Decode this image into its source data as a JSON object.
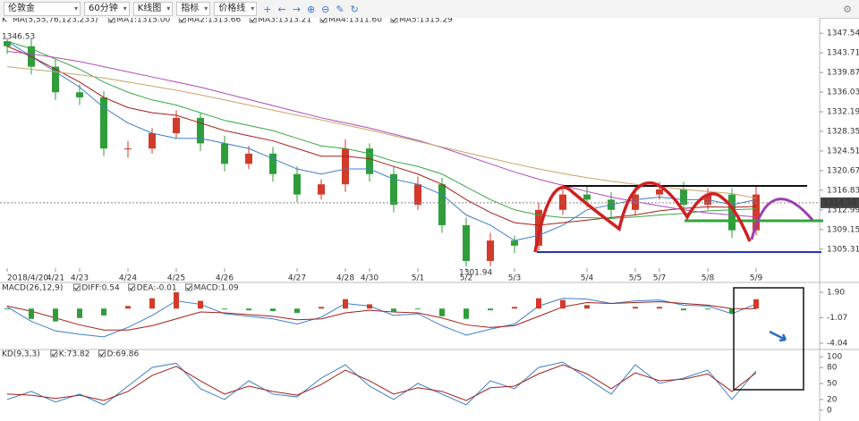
{
  "toolbar": {
    "instrument": "伦敦金",
    "period": "60分钟",
    "chart_kind": "K线图",
    "indicator": "指标",
    "price_line": "价格线"
  },
  "chart_data": [
    {
      "type": "candlestick",
      "label": "K",
      "title": "MA(5,55,76,123,233)",
      "categories": [
        "2018/4/20",
        null,
        "4/21",
        "4/23",
        null,
        "4/24",
        null,
        "4/25",
        null,
        "4/26",
        null,
        null,
        "4/27",
        null,
        "4/28",
        "4/30",
        null,
        "5/1",
        null,
        "5/2",
        null,
        "5/3",
        null,
        null,
        "5/4",
        null,
        "5/5",
        "5/7",
        null,
        "5/8",
        null,
        "5/9"
      ],
      "open": [
        1346,
        1345,
        1341,
        1336,
        1335,
        1325,
        1325,
        1328,
        1331,
        1326,
        1322,
        1324,
        1320,
        1316,
        1318,
        1325,
        1320,
        1314,
        1318,
        1310,
        1303,
        1307,
        1306,
        1313,
        1316,
        1315,
        1313,
        1316,
        1317,
        1314,
        1316,
        1309
      ],
      "high": [
        1346.53,
        1346.5,
        1342.5,
        1337.5,
        1336.2,
        1326.5,
        1329,
        1332.5,
        1332,
        1327.5,
        1325.5,
        1325.3,
        1321.5,
        1319,
        1326.8,
        1326,
        1321.5,
        1319.5,
        1319.3,
        1311.5,
        1308.5,
        1308,
        1314.5,
        1318,
        1317.5,
        1316.5,
        1317.5,
        1318.5,
        1318.5,
        1317.3,
        1317.2,
        1317.5
      ],
      "low": [
        1343.5,
        1339.5,
        1334.5,
        1333.5,
        1323.5,
        1323.2,
        1324,
        1327,
        1324.5,
        1320.5,
        1321,
        1318.5,
        1314.5,
        1315,
        1316.5,
        1318.5,
        1312.5,
        1313,
        1308.5,
        1301.94,
        1302,
        1304.5,
        1305,
        1312,
        1313.5,
        1311.5,
        1312,
        1315,
        1312.5,
        1313,
        1307.5,
        1308
      ],
      "close": [
        1345,
        1341,
        1336,
        1335,
        1325,
        1325,
        1328,
        1331,
        1326,
        1322,
        1324,
        1320,
        1316,
        1318,
        1325,
        1320,
        1314,
        1318,
        1310,
        1303,
        1307,
        1306,
        1313,
        1316,
        1315,
        1313,
        1316,
        1317,
        1314,
        1316,
        1309,
        1316
      ],
      "up_color": "#d23a2a",
      "down_color": "#2f9e3a",
      "series": [
        {
          "name": "MA1:1315.00",
          "color": "#3d7fc9",
          "values": [
            1346,
            1343,
            1340,
            1337,
            1333,
            1330,
            1328,
            1327,
            1327,
            1326,
            1325,
            1323,
            1321,
            1320,
            1321,
            1321,
            1319,
            1318,
            1316,
            1312,
            1310,
            1307,
            1308,
            1310,
            1313,
            1314,
            1315,
            1315.5,
            1315,
            1315,
            1314,
            1315
          ]
        },
        {
          "name": "MA2:1313.66",
          "color": "#a3201c",
          "values": [
            1345,
            1343,
            1340.5,
            1338,
            1335,
            1333,
            1332,
            1331.5,
            1330,
            1328.5,
            1327.5,
            1326.5,
            1325,
            1323.5,
            1323.5,
            1323,
            1321.5,
            1320,
            1318,
            1315,
            1312.5,
            1310.5,
            1310,
            1310.5,
            1311,
            1311.5,
            1312,
            1312.8,
            1313.3,
            1313.6,
            1313.5,
            1313.66
          ]
        },
        {
          "name": "MA3:1313.21",
          "color": "#3aa845",
          "values": [
            1346,
            1344.5,
            1342.5,
            1340.5,
            1338,
            1336,
            1334.5,
            1333.5,
            1332,
            1330.5,
            1329.5,
            1328.5,
            1327,
            1325.5,
            1325,
            1324,
            1322.5,
            1321.5,
            1320,
            1317.5,
            1315,
            1313,
            1312,
            1311.5,
            1311.5,
            1311.3,
            1311.6,
            1312,
            1312.3,
            1312.8,
            1313,
            1313.21
          ]
        },
        {
          "name": "MA4:1311.60",
          "color": "#b04cb8",
          "values": [
            1344,
            1343.5,
            1342.8,
            1342,
            1341,
            1340,
            1339,
            1338,
            1337,
            1335.8,
            1334.6,
            1333.4,
            1332.2,
            1331,
            1330,
            1329,
            1327.8,
            1326.6,
            1325.2,
            1323.6,
            1322,
            1320.4,
            1319,
            1317.8,
            1316.6,
            1315.5,
            1314.6,
            1313.8,
            1313,
            1312.4,
            1312,
            1311.6
          ]
        },
        {
          "name": "MA5:1315.29",
          "color": "#c8a46a",
          "values": [
            1341,
            1340.5,
            1340,
            1339.4,
            1338.8,
            1338,
            1337.2,
            1336.4,
            1335.5,
            1334.5,
            1333.5,
            1332.5,
            1331.5,
            1330.6,
            1329.6,
            1328.6,
            1327.5,
            1326.4,
            1325.3,
            1324.2,
            1323.1,
            1322,
            1321,
            1320.1,
            1319.3,
            1318.6,
            1318,
            1317.5,
            1317,
            1316.6,
            1316.2,
            1315.29
          ]
        }
      ],
      "last_price": 1314.38,
      "ylim": [
        1301.6,
        1348.8
      ],
      "yticks": [
        1305.31,
        1309.15,
        1312.99,
        1316.83,
        1320.67,
        1324.51,
        1328.35,
        1332.19,
        1336.03,
        1339.87,
        1343.71,
        1347.54
      ]
    },
    {
      "type": "macd",
      "title": "MACD(26,12,9)",
      "series": [
        {
          "name": "DIFF:0.54",
          "color": "#3d7fc9",
          "values": [
            0.2,
            -1.5,
            -2.6,
            -3.0,
            -3.3,
            -2.2,
            -0.8,
            0.9,
            0.5,
            -0.6,
            -0.9,
            -1.2,
            -1.8,
            -1.0,
            0.6,
            0.3,
            -0.8,
            -0.6,
            -2.0,
            -3.1,
            -2.4,
            -1.8,
            0.3,
            1.2,
            1.1,
            0.6,
            0.9,
            1.0,
            0.4,
            0.3,
            -0.6,
            0.54
          ]
        },
        {
          "name": "DEA:-0.01",
          "color": "#a3201c",
          "values": [
            0.3,
            -0.3,
            -1.1,
            -1.9,
            -2.5,
            -2.5,
            -2.0,
            -1.2,
            -0.4,
            -0.5,
            -0.7,
            -0.9,
            -1.3,
            -1.2,
            -0.5,
            -0.2,
            -0.4,
            -0.5,
            -1.1,
            -1.9,
            -2.2,
            -2.0,
            -0.9,
            0.2,
            0.7,
            0.6,
            0.7,
            0.8,
            0.6,
            0.4,
            0.0,
            -0.01
          ]
        },
        {
          "name": "MACD:1.09",
          "color": "#3aa845",
          "up_color": "#d23a2a",
          "down_color": "#2f9e3a",
          "histogram": true,
          "values": [
            -0.1,
            -1.2,
            -1.5,
            -1.1,
            -0.8,
            0.3,
            1.2,
            1.9,
            0.9,
            -0.1,
            -0.2,
            -0.3,
            -0.5,
            0.2,
            1.1,
            0.5,
            -0.4,
            -0.1,
            -0.9,
            -1.2,
            -0.2,
            0.2,
            1.2,
            1.0,
            0.4,
            0.0,
            0.2,
            0.2,
            -0.2,
            -0.1,
            -0.6,
            1.09
          ]
        }
      ],
      "ylim": [
        -4.67,
        2.84
      ],
      "yticks": [
        {
          "value": 1.9,
          "label": "1.90"
        },
        -1.07,
        -4.04
      ]
    },
    {
      "type": "line",
      "title": "KD(9,3,3)",
      "series": [
        {
          "name": "K:73.82",
          "color": "#3d7fc9",
          "values": [
            20,
            35,
            15,
            30,
            10,
            45,
            80,
            88,
            40,
            20,
            55,
            30,
            25,
            60,
            85,
            45,
            20,
            50,
            30,
            10,
            55,
            40,
            80,
            90,
            60,
            30,
            85,
            50,
            60,
            75,
            20,
            73.82
          ]
        },
        {
          "name": "D:69.86",
          "color": "#a3201c",
          "values": [
            30,
            28,
            22,
            28,
            18,
            35,
            65,
            82,
            55,
            30,
            45,
            35,
            28,
            48,
            75,
            55,
            30,
            42,
            35,
            18,
            42,
            45,
            68,
            85,
            68,
            40,
            70,
            55,
            58,
            68,
            35,
            69.86
          ]
        }
      ],
      "ylim": [
        -12,
        112
      ],
      "yticks": [
        0,
        20,
        50,
        80,
        100
      ]
    }
  ]
}
